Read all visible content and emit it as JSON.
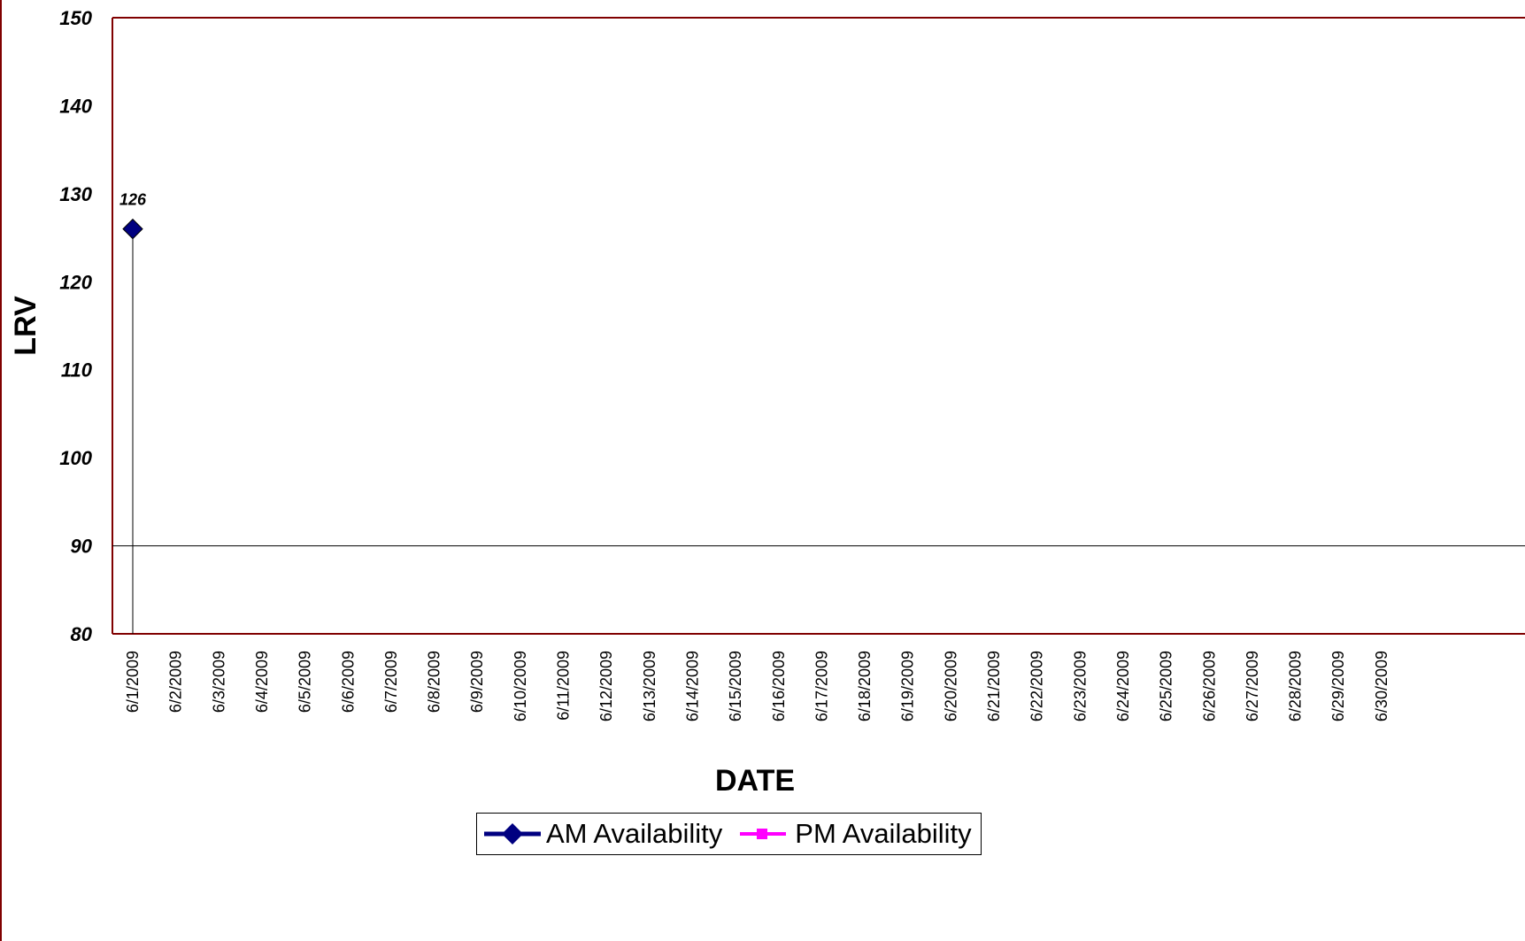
{
  "chart_data": {
    "type": "line",
    "xlabel": "DATE",
    "ylabel": "LRV",
    "ylim": [
      80,
      150
    ],
    "yticks": [
      "80",
      "90",
      "100",
      "110",
      "120",
      "130",
      "140",
      "150"
    ],
    "categories": [
      "6/1/2009",
      "6/2/2009",
      "6/3/2009",
      "6/4/2009",
      "6/5/2009",
      "6/6/2009",
      "6/7/2009",
      "6/8/2009",
      "6/9/2009",
      "6/10/2009",
      "6/11/2009",
      "6/12/2009",
      "6/13/2009",
      "6/14/2009",
      "6/15/2009",
      "6/16/2009",
      "6/17/2009",
      "6/18/2009",
      "6/19/2009",
      "6/20/2009",
      "6/21/2009",
      "6/22/2009",
      "6/23/2009",
      "6/24/2009",
      "6/25/2009",
      "6/26/2009",
      "6/27/2009",
      "6/28/2009",
      "6/29/2009",
      "6/30/2009"
    ],
    "series": [
      {
        "name": "AM Availability",
        "color": "#000080",
        "marker": "diamond",
        "values": [
          126,
          null,
          null,
          null,
          null,
          null,
          null,
          null,
          null,
          null,
          null,
          null,
          null,
          null,
          null,
          null,
          null,
          null,
          null,
          null,
          null,
          null,
          null,
          null,
          null,
          null,
          null,
          null,
          null,
          null
        ],
        "data_labels": [
          "126",
          null,
          null,
          null,
          null,
          null,
          null,
          null,
          null,
          null,
          null,
          null,
          null,
          null,
          null,
          null,
          null,
          null,
          null,
          null,
          null,
          null,
          null,
          null,
          null,
          null,
          null,
          null,
          null,
          null
        ]
      },
      {
        "name": "PM Availability",
        "color": "#FF00FF",
        "marker": "square",
        "values": [
          null,
          null,
          null,
          null,
          null,
          null,
          null,
          null,
          null,
          null,
          null,
          null,
          null,
          null,
          null,
          null,
          null,
          null,
          null,
          null,
          null,
          null,
          null,
          null,
          null,
          null,
          null,
          null,
          null,
          null
        ]
      }
    ],
    "reference_line": 90,
    "drop_lines": true,
    "grid": false,
    "legend_position": "bottom",
    "frame_color": "#800000"
  }
}
